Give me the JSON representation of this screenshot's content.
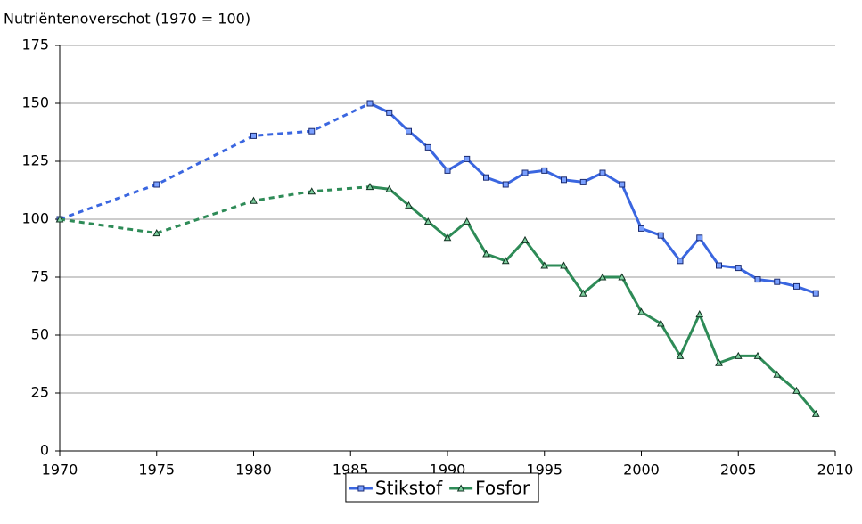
{
  "chart_data": {
    "type": "line",
    "title": "Nutriëntenoverschot (1970 = 100)",
    "x": [
      1970,
      1975,
      1980,
      1983,
      1986,
      1987,
      1988,
      1989,
      1990,
      1991,
      1992,
      1993,
      1994,
      1995,
      1996,
      1997,
      1998,
      1999,
      2000,
      2001,
      2002,
      2003,
      2004,
      2005,
      2006,
      2007,
      2008,
      2009
    ],
    "series": [
      {
        "name": "Stikstof",
        "color": "#3a66e0",
        "marker": "square",
        "dash_until_x": 1986,
        "values": [
          100,
          115,
          136,
          138,
          150,
          146,
          138,
          131,
          121,
          126,
          118,
          115,
          120,
          121,
          117,
          116,
          120,
          115,
          96,
          93,
          82,
          92,
          80,
          79,
          74,
          73,
          71,
          68
        ]
      },
      {
        "name": "Fosfor",
        "color": "#2e8b57",
        "marker": "triangle",
        "dash_until_x": 1986,
        "values": [
          100,
          94,
          108,
          112,
          114,
          113,
          106,
          99,
          92,
          99,
          85,
          82,
          91,
          80,
          80,
          68,
          75,
          75,
          60,
          55,
          41,
          59,
          38,
          41,
          41,
          33,
          26,
          16
        ]
      }
    ],
    "xlim": [
      1970,
      2010
    ],
    "xticks": [
      1970,
      1975,
      1980,
      1985,
      1990,
      1995,
      2000,
      2005,
      2010
    ],
    "ylim": [
      0,
      175
    ],
    "yticks": [
      0,
      25,
      50,
      75,
      100,
      125,
      150,
      175
    ],
    "grid": true,
    "legend": "bottom"
  }
}
